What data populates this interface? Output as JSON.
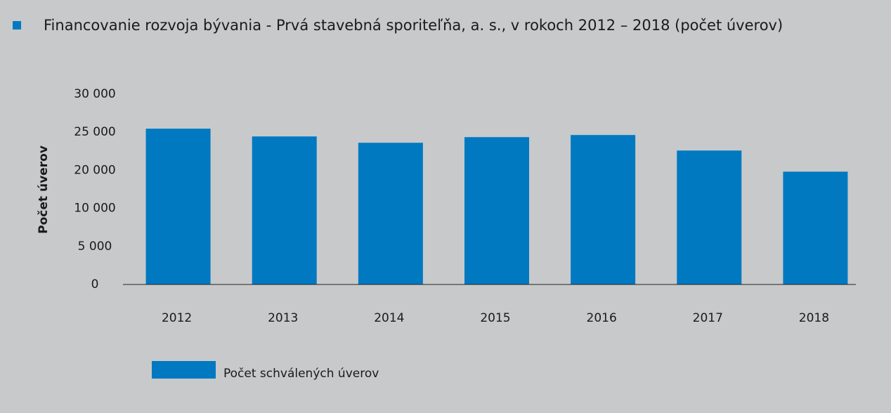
{
  "chart_data": {
    "type": "bar",
    "title": "Financovanie rozvoja bývania - Prvá stavebná sporiteľňa, a. s., v rokoch 2012 – 2018 (počet úverov)",
    "y_label": "Počet úverov",
    "categories": [
      "2012",
      "2013",
      "2014",
      "2015",
      "2016",
      "2017",
      "2018"
    ],
    "series": [
      {
        "name": "Počet schválených úverov",
        "color": "#0079c1",
        "values": [
          25460,
          24440,
          23610,
          24350,
          24630,
          22590,
          19630
        ]
      }
    ],
    "ylim": [
      0,
      30000
    ],
    "yticks": [
      0,
      {
        "value": 5000,
        "label": "5 000"
      },
      {
        "value": 10000,
        "label": "10 000"
      },
      {
        "value": 20000,
        "label": "20 000"
      },
      {
        "value": 25000,
        "label": "25 000"
      },
      {
        "value": 30000,
        "label": "30 000"
      }
    ],
    "legend": "bottom-left"
  }
}
